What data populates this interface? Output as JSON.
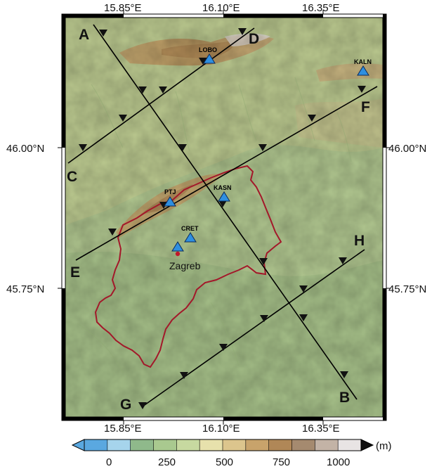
{
  "map": {
    "x_ticks": [
      "15.85°E",
      "16.10°E",
      "16.35°E"
    ],
    "y_ticks": [
      "46.00°N",
      "45.75°N"
    ],
    "profiles": [
      {
        "start_label": "A",
        "end_label": "B"
      },
      {
        "start_label": "C",
        "end_label": "D"
      },
      {
        "start_label": "E",
        "end_label": "F"
      },
      {
        "start_label": "G",
        "end_label": "H"
      }
    ],
    "stations": [
      "LOBO",
      "KALN",
      "PTJ",
      "KASN",
      "CRET"
    ],
    "city": "Zagreb",
    "colors": {
      "station_fill": "#2f8fe0",
      "boundary": "#a3182a",
      "profile_line": "#000000",
      "city_marker": "#c0182a"
    }
  },
  "colorbar": {
    "ticks": [
      "0",
      "250",
      "500",
      "750",
      "1000"
    ],
    "unit": "(m)",
    "colors": [
      "#5aa8e0",
      "#a6d4ec",
      "#8fb98b",
      "#a9c98f",
      "#c7d9a0",
      "#e7e1ac",
      "#dcc58d",
      "#c8a36b",
      "#b08757",
      "#a58a6f",
      "#c3b3a6",
      "#e8e4e4"
    ]
  }
}
